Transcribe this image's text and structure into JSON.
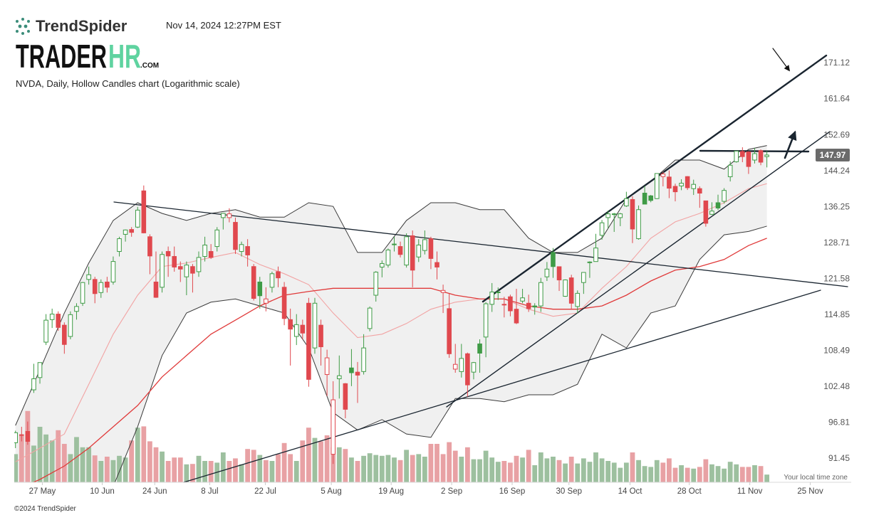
{
  "header": {
    "brand": "TrendSpider",
    "timestamp": "Nov 14, 2024 12:27PM EST",
    "watermark_main": "TRADER",
    "watermark_accent": "HR",
    "watermark_suffix": ".COM",
    "footer": "©2024 TrendSpider",
    "timezone_note": "Your local time zone"
  },
  "chart_data": {
    "type": "candlestick",
    "title": "NVDA, Daily, Hollow Candles chart (Logarithmic scale)",
    "log_scale": true,
    "grid": false,
    "ylim": [
      88.1,
      186
    ],
    "yticks": [
      91.45,
      96.81,
      102.48,
      108.49,
      114.85,
      121.58,
      128.71,
      136.25,
      144.24,
      152.69,
      161.64,
      171.12
    ],
    "xlim": [
      -0.2,
      136.8
    ],
    "xticks": [
      {
        "value": 4.4,
        "label": "27 May"
      },
      {
        "value": 14.2,
        "label": "10 Jun"
      },
      {
        "value": 22.8,
        "label": "24 Jun"
      },
      {
        "value": 31.8,
        "label": "8 Jul"
      },
      {
        "value": 40.9,
        "label": "22 Jul"
      },
      {
        "value": 51.7,
        "label": "5 Aug"
      },
      {
        "value": 61.5,
        "label": "19 Aug"
      },
      {
        "value": 71.4,
        "label": "2 Sep"
      },
      {
        "value": 81.3,
        "label": "16 Sep"
      },
      {
        "value": 90.6,
        "label": "30 Sep"
      },
      {
        "value": 100.6,
        "label": "14 Oct"
      },
      {
        "value": 110.3,
        "label": "28 Oct"
      },
      {
        "value": 120.2,
        "label": "11 Nov"
      },
      {
        "value": 130.1,
        "label": "25 Nov"
      }
    ],
    "up_color": "#3f9b46",
    "down_color": "#e0484e",
    "volume_up_color": "#9dc09f",
    "volume_down_color": "#e8a1a4",
    "open": [
      93.8,
      95.0,
      95.5,
      102.0,
      104,
      110,
      114,
      115,
      113,
      111,
      115.5,
      117,
      121.5,
      121.5,
      119,
      121,
      121,
      127,
      130.5,
      131.5,
      132,
      139.8,
      130,
      121,
      120,
      127,
      126,
      124,
      122,
      124,
      123,
      126,
      127,
      128,
      134,
      134,
      133,
      127,
      128,
      124,
      121,
      117,
      120,
      123,
      120,
      114,
      111,
      113,
      117,
      109,
      113,
      104.5,
      92.1,
      103.8,
      103,
      105.6,
      104.9,
      105,
      112.4,
      118.5,
      123.9,
      124.3,
      128.4,
      128,
      124.3,
      130.2,
      125.9,
      127.2,
      129.6,
      124.8,
      119,
      116,
      105.4,
      104.99,
      108,
      104.9,
      109.7,
      110.9,
      116.8,
      119.1,
      116.8,
      118.2,
      115.9,
      117.4,
      117,
      116.5,
      116.5,
      122,
      126.8,
      123.97,
      118.3,
      121.8,
      116.4,
      120.9,
      124.9,
      124.99,
      130.3,
      134,
      134.8,
      134,
      136.5,
      137.9,
      129.6,
      139.3,
      138.7,
      138.1,
      143,
      142.9,
      140.8,
      140.9,
      143,
      140.3,
      140.3,
      137.6,
      134.7,
      137.2,
      137.5,
      142.96,
      146.4,
      148.8,
      148.7,
      146.8,
      149,
      147.6
    ],
    "high": [
      95.6,
      96.2,
      97.0,
      106.3,
      106.5,
      115,
      116,
      115.5,
      113.5,
      115.5,
      117,
      121,
      124,
      122,
      121.5,
      122,
      126,
      130,
      131.5,
      132,
      136.3,
      141.0,
      130.5,
      127,
      127,
      128,
      128,
      125,
      125,
      124.5,
      127,
      130,
      128.5,
      132,
      135,
      136,
      134,
      129,
      129.5,
      124.5,
      122,
      120,
      123,
      124,
      121,
      116,
      115,
      114,
      118,
      118,
      114,
      108.7,
      103.4,
      107.7,
      103.1,
      108.8,
      106.6,
      111.4,
      116.4,
      123.1,
      125.2,
      127.6,
      130.0,
      129,
      130.7,
      131.3,
      129.5,
      131.3,
      130,
      127,
      120.5,
      118.8,
      109.7,
      109.7,
      108.2,
      106.6,
      110.5,
      117.2,
      120.8,
      119.96,
      118.2,
      118.6,
      119.7,
      119.7,
      118.6,
      117,
      121.8,
      124.9,
      127.7,
      124,
      121.5,
      122.4,
      119.4,
      122.85,
      125.04,
      130.6,
      133.5,
      135.5,
      135,
      135,
      139.6,
      138.6,
      136.6,
      140.9,
      138.9,
      143.7,
      144.1,
      144.4,
      141.4,
      142.4,
      143.1,
      142.3,
      140.8,
      137.6,
      137.3,
      138.96,
      140.4,
      146.5,
      148.9,
      149.8,
      148.85,
      149.65,
      149.3,
      148.9
    ],
    "low": [
      93.0,
      94.0,
      93.5,
      101.5,
      103,
      109.5,
      112.5,
      112,
      108,
      110.5,
      114,
      116.5,
      120.5,
      117,
      118,
      119,
      120.5,
      126,
      129,
      130,
      131.8,
      130.7,
      122.5,
      118,
      119,
      122,
      123,
      121,
      118.5,
      119,
      122,
      125,
      125.5,
      127,
      131.5,
      133,
      126.5,
      126,
      124,
      117.5,
      116,
      115.5,
      119,
      120,
      113,
      106,
      109.5,
      110.5,
      102.5,
      108,
      106,
      101,
      90.7,
      100.6,
      97.5,
      102.6,
      99.9,
      104.5,
      111.9,
      117.3,
      121.9,
      123.8,
      127.0,
      125.8,
      123.8,
      120,
      124.9,
      126.4,
      123.5,
      121.5,
      115.2,
      107.3,
      104.8,
      104,
      100.9,
      103.7,
      104.8,
      107.4,
      115.4,
      117.6,
      114.4,
      114.6,
      113.2,
      117,
      115.4,
      114.9,
      115.4,
      121.2,
      121.8,
      119.3,
      118.2,
      115.8,
      115.1,
      118.75,
      121.8,
      124.95,
      129.4,
      131.7,
      131,
      132.2,
      136.3,
      128.7,
      129.4,
      136.9,
      137.3,
      138,
      140.8,
      138.2,
      137.5,
      139.95,
      140,
      138.9,
      136.1,
      132.1,
      134.6,
      135.6,
      137,
      141.9,
      146.2,
      146.3,
      143.6,
      146,
      145.6,
      145.1
    ],
    "close": [
      95.3,
      95.0,
      94.0,
      103.8,
      106.5,
      113.9,
      115.0,
      112.6,
      109.6,
      114.9,
      116.4,
      120.9,
      122.4,
      118.8,
      120.9,
      120.0,
      125.0,
      129.6,
      131.4,
      130.9,
      135.6,
      130.8,
      126.1,
      118.1,
      126.4,
      126.1,
      123.9,
      123.5,
      124.3,
      122.7,
      125.8,
      128.3,
      125.8,
      131.4,
      134.9,
      134.8,
      127.4,
      128.4,
      126.3,
      117.9,
      118.4,
      117.8,
      122.6,
      121.8,
      114.2,
      112.3,
      113.1,
      111.6,
      103.7,
      117.0,
      109.2,
      107.3,
      100.4,
      104.3,
      98.9,
      104.8,
      104.4,
      109.0,
      116.1,
      122.9,
      124.6,
      127.3,
      128.5,
      126.4,
      130.0,
      123.3,
      128.3,
      129.4,
      125.6,
      123.9,
      119.4,
      108.0,
      106.2,
      107.2,
      102.8,
      106.5,
      108.1,
      116.9,
      119.1,
      119.1,
      116.8,
      115.6,
      113.4,
      118.0,
      116.0,
      116.3,
      120.9,
      123.5,
      124.0,
      121.4,
      121.4,
      117.0,
      118.85,
      122.85,
      124.9,
      127.7,
      132.9,
      134.8,
      134.8,
      134.8,
      138.1,
      131.6,
      135.7,
      136.9,
      137.7,
      143.7,
      143.6,
      140.4,
      139.6,
      141.5,
      140.5,
      141.25,
      139.3,
      132.8,
      135.4,
      136.05,
      139.9,
      145.6,
      148.9,
      147.6,
      145.3,
      148.3,
      146.3,
      147.97
    ],
    "volume": [
      330,
      550,
      835,
      430,
      650,
      560,
      490,
      610,
      450,
      330,
      530,
      410,
      410,
      315,
      250,
      300,
      260,
      310,
      290,
      490,
      640,
      655,
      480,
      410,
      360,
      250,
      290,
      290,
      210,
      215,
      310,
      250,
      250,
      230,
      350,
      250,
      280,
      210,
      390,
      380,
      320,
      260,
      250,
      330,
      460,
      330,
      250,
      490,
      640,
      520,
      480,
      550,
      410,
      410,
      390,
      290,
      250,
      310,
      340,
      320,
      310,
      320,
      290,
      260,
      380,
      320,
      330,
      300,
      450,
      450,
      330,
      470,
      370,
      300,
      410,
      270,
      270,
      370,
      290,
      240,
      250,
      230,
      310,
      290,
      380,
      200,
      350,
      280,
      300,
      260,
      220,
      300,
      220,
      280,
      240,
      350,
      280,
      250,
      230,
      170,
      230,
      350,
      260,
      190,
      180,
      260,
      230,
      280,
      170,
      200,
      170,
      160,
      180,
      270,
      210,
      190,
      160,
      240,
      210,
      180,
      180,
      200,
      190,
      90
    ],
    "last_price": 147.97,
    "bands": {
      "color": "#3a3a3a",
      "fill": "#f0f0f0",
      "x": [
        0,
        4,
        8,
        12,
        16,
        20,
        24,
        28,
        32,
        36,
        40,
        44,
        48,
        52,
        56,
        60,
        64,
        68,
        72,
        76,
        80,
        84,
        88,
        92,
        96,
        100,
        104,
        108,
        112,
        116,
        120,
        123
      ],
      "upper": [
        96.4,
        105.3,
        115.2,
        124.7,
        133.4,
        137.2,
        134.9,
        133.4,
        134.9,
        135.7,
        134.1,
        134.1,
        137.2,
        136.4,
        126.8,
        126.8,
        133.4,
        137.2,
        137.2,
        135.7,
        135.7,
        129.7,
        126.8,
        126.8,
        129.7,
        138.0,
        141.9,
        146.8,
        146.8,
        144.7,
        149.3,
        150.2
      ],
      "lower": [
        82,
        82,
        84,
        86,
        87.5,
        96.2,
        107.7,
        115.2,
        117.2,
        117.8,
        116.5,
        115.2,
        109.0,
        98.4,
        95.7,
        97.3,
        95.1,
        94.6,
        100.6,
        100.6,
        100.1,
        101.2,
        101.2,
        102.9,
        111.4,
        109.0,
        115.2,
        116.5,
        125.4,
        130.4,
        131.1,
        132.2
      ]
    },
    "series": [
      {
        "color": "#f2a3a3",
        "x": [
          0,
          4,
          8,
          12,
          16,
          20,
          24,
          28,
          32,
          36,
          40,
          44,
          48,
          52,
          56,
          60,
          64,
          68,
          72,
          76,
          80,
          84,
          88,
          92,
          96,
          100,
          104,
          108,
          112,
          116,
          120,
          123
        ],
        "values": [
          91,
          93,
          95.1,
          102.9,
          111.4,
          118.5,
          124.0,
          124.7,
          125.8,
          126.8,
          124.4,
          122.6,
          120.5,
          115.2,
          110.8,
          111.4,
          113.3,
          115.9,
          117.2,
          117.8,
          117.8,
          115.9,
          114.6,
          115.2,
          119.8,
          124.0,
          129.7,
          133.1,
          134.9,
          137.2,
          140.3,
          141.4
        ]
      },
      {
        "color": "#e03a3a",
        "x": [
          0,
          4,
          8,
          12,
          16,
          20,
          24,
          28,
          32,
          36,
          40,
          44,
          48,
          52,
          56,
          60,
          64,
          68,
          72,
          76,
          80,
          84,
          88,
          92,
          96,
          100,
          104,
          108,
          112,
          116,
          120,
          123
        ],
        "values": [
          87,
          88.5,
          90.4,
          93.0,
          96.2,
          99.5,
          104.1,
          107.7,
          111.4,
          113.9,
          116.5,
          118.5,
          119.2,
          119.8,
          119.8,
          119.8,
          119.8,
          119.8,
          118.5,
          117.8,
          117.8,
          116.5,
          115.9,
          115.9,
          116.5,
          118.5,
          121.2,
          123.3,
          124.0,
          125.4,
          128.2,
          129.7
        ]
      }
    ]
  }
}
